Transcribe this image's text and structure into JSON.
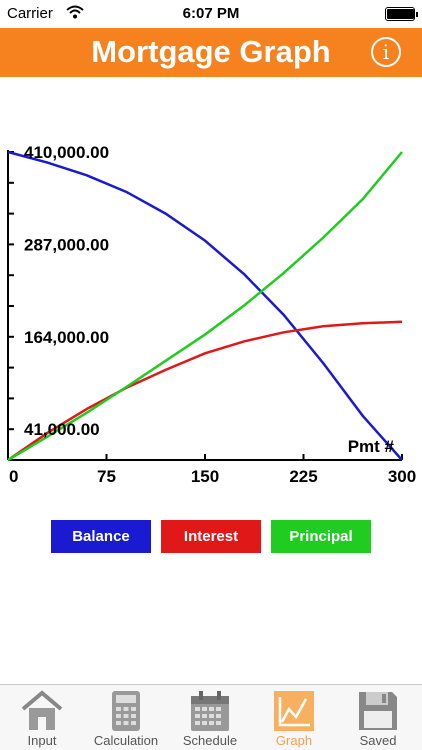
{
  "status_bar": {
    "carrier": "Carrier",
    "time": "6:07 PM",
    "battery_level": 0.95
  },
  "header": {
    "title": "Mortgage Graph",
    "info_label": "i",
    "background_color": "#f5821f"
  },
  "legend": [
    {
      "label": "Balance",
      "color": "#1a1ad0"
    },
    {
      "label": "Interest",
      "color": "#e01818"
    },
    {
      "label": "Principal",
      "color": "#20cc20"
    }
  ],
  "tabs": [
    {
      "label": "Input",
      "icon": "house-icon",
      "active": false
    },
    {
      "label": "Calculation",
      "icon": "calculator-icon",
      "active": false
    },
    {
      "label": "Schedule",
      "icon": "calendar-icon",
      "active": false
    },
    {
      "label": "Graph",
      "icon": "graph-icon",
      "active": true
    },
    {
      "label": "Saved",
      "icon": "floppy-disk-icon",
      "active": false
    }
  ],
  "chart_data": {
    "type": "line",
    "xlabel": "Pmt #",
    "x_ticks": [
      0,
      75,
      150,
      225,
      300
    ],
    "x_tick_labels": [
      "0",
      "75",
      "150",
      "225",
      "300"
    ],
    "y_ticks": [
      41000,
      164000,
      287000,
      410000
    ],
    "y_tick_labels": [
      "41,000.00",
      "164,000.00",
      "287,000.00",
      "410,000.00"
    ],
    "xlim": [
      0,
      300
    ],
    "ylim": [
      0,
      410000
    ],
    "x": [
      0,
      30,
      60,
      90,
      120,
      150,
      180,
      210,
      240,
      270,
      300
    ],
    "series": [
      {
        "name": "Balance",
        "color": "#1a1ad0",
        "values": [
          410000,
          396000,
          379000,
          357000,
          328000,
          292000,
          247000,
          193000,
          129000,
          59000,
          0
        ]
      },
      {
        "name": "Interest",
        "color": "#e01818",
        "values": [
          0,
          36000,
          68000,
          96000,
          120000,
          142000,
          158000,
          170000,
          178000,
          182000,
          184000
        ]
      },
      {
        "name": "Principal",
        "color": "#20cc20",
        "values": [
          0,
          31000,
          63000,
          97000,
          132000,
          167000,
          206000,
          249000,
          296000,
          347000,
          410000
        ]
      }
    ],
    "grid": false
  }
}
